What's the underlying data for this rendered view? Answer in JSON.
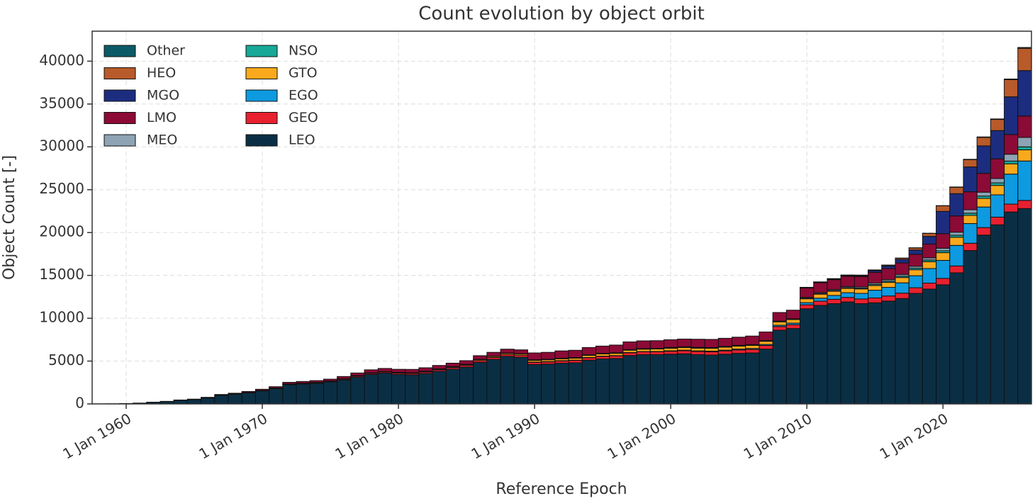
{
  "chart_data": {
    "type": "stacked_bar",
    "title": "Count evolution by object orbit",
    "xlabel": "Reference Epoch",
    "ylabel": "Object Count [-]",
    "x": [
      1958,
      1959,
      1960,
      1961,
      1962,
      1963,
      1964,
      1965,
      1966,
      1967,
      1968,
      1969,
      1970,
      1971,
      1972,
      1973,
      1974,
      1975,
      1976,
      1977,
      1978,
      1979,
      1980,
      1981,
      1982,
      1983,
      1984,
      1985,
      1986,
      1987,
      1988,
      1989,
      1990,
      1991,
      1992,
      1993,
      1994,
      1995,
      1996,
      1997,
      1998,
      1999,
      2000,
      2001,
      2002,
      2003,
      2004,
      2005,
      2006,
      2007,
      2008,
      2009,
      2010,
      2011,
      2012,
      2013,
      2014,
      2015,
      2016,
      2017,
      2018,
      2019,
      2020,
      2021,
      2022,
      2023,
      2024,
      2025,
      2026
    ],
    "xlim": [
      1957.5,
      2026.5
    ],
    "xticks": [
      {
        "value": 1960,
        "label": "1 Jan 1960"
      },
      {
        "value": 1970,
        "label": "1 Jan 1970"
      },
      {
        "value": 1980,
        "label": "1 Jan 1980"
      },
      {
        "value": 1990,
        "label": "1 Jan 1990"
      },
      {
        "value": 2000,
        "label": "1 Jan 2000"
      },
      {
        "value": 2010,
        "label": "1 Jan 2010"
      },
      {
        "value": 2020,
        "label": "1 Jan 2020"
      }
    ],
    "ylim": [
      0,
      43500
    ],
    "yticks": [
      0,
      5000,
      10000,
      15000,
      20000,
      25000,
      30000,
      35000,
      40000
    ],
    "grid": true,
    "legend": "upper left",
    "series": [
      {
        "name": "LEO",
        "color": "#0a2f45",
        "values": [
          10,
          20,
          50,
          100,
          190,
          280,
          420,
          510,
          690,
          1000,
          1130,
          1300,
          1520,
          1790,
          2250,
          2320,
          2400,
          2560,
          2800,
          3150,
          3450,
          3600,
          3450,
          3400,
          3550,
          3800,
          4050,
          4300,
          4850,
          5200,
          5550,
          5450,
          4600,
          4650,
          4750,
          4800,
          5100,
          5250,
          5300,
          5650,
          5750,
          5750,
          5800,
          5850,
          5750,
          5700,
          5800,
          5900,
          5950,
          6400,
          8600,
          8800,
          11100,
          11500,
          11700,
          11900,
          11700,
          11800,
          12000,
          12300,
          12900,
          13400,
          13900,
          15300,
          17900,
          19700,
          20900,
          22400,
          22800
        ]
      },
      {
        "name": "GEO",
        "color": "#e8202f",
        "values": [
          0,
          0,
          0,
          0,
          0,
          0,
          10,
          10,
          20,
          30,
          30,
          40,
          50,
          60,
          70,
          80,
          90,
          100,
          110,
          120,
          130,
          140,
          150,
          160,
          170,
          180,
          190,
          200,
          210,
          220,
          230,
          240,
          250,
          260,
          270,
          280,
          290,
          300,
          310,
          320,
          330,
          340,
          350,
          360,
          370,
          380,
          390,
          400,
          410,
          420,
          430,
          450,
          470,
          490,
          510,
          530,
          550,
          570,
          600,
          630,
          660,
          700,
          750,
          800,
          850,
          880,
          900,
          920,
          950
        ]
      },
      {
        "name": "EGO",
        "color": "#0d9ae0",
        "values": [
          0,
          0,
          0,
          0,
          0,
          0,
          0,
          0,
          0,
          0,
          0,
          0,
          0,
          0,
          0,
          0,
          0,
          0,
          0,
          0,
          0,
          0,
          0,
          0,
          0,
          0,
          0,
          0,
          0,
          0,
          0,
          0,
          30,
          30,
          30,
          30,
          30,
          30,
          30,
          30,
          30,
          30,
          50,
          60,
          70,
          80,
          90,
          100,
          110,
          120,
          150,
          180,
          250,
          350,
          450,
          550,
          650,
          900,
          1000,
          1200,
          1400,
          1700,
          2100,
          2400,
          2300,
          2400,
          2600,
          3500,
          4600
        ]
      },
      {
        "name": "GTO",
        "color": "#f9a91b",
        "values": [
          0,
          0,
          0,
          0,
          0,
          0,
          0,
          0,
          0,
          0,
          0,
          0,
          10,
          10,
          20,
          20,
          30,
          30,
          40,
          40,
          50,
          50,
          60,
          60,
          70,
          80,
          90,
          100,
          110,
          120,
          130,
          140,
          200,
          210,
          220,
          230,
          240,
          250,
          260,
          270,
          280,
          290,
          300,
          310,
          320,
          330,
          340,
          350,
          360,
          370,
          400,
          420,
          450,
          470,
          490,
          500,
          520,
          550,
          580,
          620,
          700,
          800,
          900,
          950,
          950,
          1000,
          1100,
          1200,
          1300
        ]
      },
      {
        "name": "NSO",
        "color": "#18a898",
        "values": [
          0,
          0,
          0,
          0,
          0,
          0,
          0,
          0,
          0,
          0,
          0,
          0,
          0,
          0,
          0,
          0,
          0,
          0,
          0,
          0,
          0,
          0,
          10,
          10,
          10,
          10,
          10,
          10,
          10,
          10,
          10,
          10,
          30,
          30,
          30,
          30,
          30,
          30,
          30,
          30,
          30,
          30,
          30,
          30,
          30,
          30,
          30,
          30,
          30,
          30,
          30,
          30,
          60,
          70,
          80,
          90,
          100,
          120,
          140,
          160,
          180,
          200,
          220,
          240,
          260,
          280,
          300,
          320,
          350
        ]
      },
      {
        "name": "MEO",
        "color": "#8ea3b3",
        "values": [
          0,
          0,
          0,
          0,
          0,
          0,
          0,
          0,
          0,
          0,
          0,
          0,
          0,
          0,
          0,
          0,
          0,
          0,
          0,
          0,
          0,
          0,
          20,
          20,
          20,
          20,
          20,
          20,
          20,
          20,
          20,
          20,
          40,
          40,
          40,
          40,
          40,
          40,
          40,
          40,
          40,
          40,
          60,
          60,
          60,
          60,
          60,
          60,
          60,
          60,
          60,
          60,
          100,
          110,
          120,
          130,
          140,
          160,
          180,
          200,
          220,
          250,
          300,
          350,
          400,
          450,
          500,
          800,
          1100
        ]
      },
      {
        "name": "LMO",
        "color": "#8c0a36",
        "values": [
          0,
          0,
          0,
          0,
          10,
          20,
          30,
          40,
          60,
          70,
          90,
          110,
          130,
          150,
          180,
          200,
          200,
          200,
          250,
          300,
          350,
          350,
          350,
          380,
          400,
          400,
          400,
          420,
          430,
          450,
          450,
          450,
          800,
          800,
          850,
          850,
          850,
          850,
          900,
          900,
          900,
          900,
          900,
          900,
          950,
          950,
          950,
          950,
          1000,
          1000,
          1000,
          1000,
          1100,
          1150,
          1150,
          1200,
          1200,
          1250,
          1300,
          1350,
          1400,
          1600,
          1700,
          1900,
          2100,
          2200,
          2300,
          2300,
          2500
        ]
      },
      {
        "name": "MGO",
        "color": "#1c2d80",
        "values": [
          0,
          0,
          0,
          0,
          0,
          0,
          0,
          0,
          0,
          0,
          0,
          0,
          0,
          0,
          0,
          0,
          0,
          0,
          0,
          0,
          0,
          0,
          0,
          0,
          0,
          0,
          0,
          0,
          0,
          0,
          0,
          0,
          0,
          0,
          0,
          0,
          0,
          0,
          0,
          0,
          0,
          0,
          0,
          0,
          0,
          0,
          0,
          0,
          0,
          0,
          0,
          0,
          50,
          60,
          70,
          80,
          100,
          200,
          300,
          400,
          500,
          900,
          2600,
          2600,
          2900,
          3200,
          3300,
          4400,
          5300
        ]
      },
      {
        "name": "HEO",
        "color": "#b85a2a",
        "values": [
          0,
          0,
          0,
          0,
          0,
          0,
          0,
          0,
          0,
          0,
          0,
          0,
          0,
          0,
          0,
          0,
          0,
          0,
          0,
          0,
          0,
          0,
          0,
          0,
          0,
          0,
          0,
          0,
          0,
          0,
          0,
          0,
          0,
          0,
          0,
          0,
          0,
          0,
          0,
          0,
          0,
          0,
          0,
          0,
          0,
          0,
          0,
          0,
          0,
          0,
          0,
          0,
          20,
          30,
          40,
          50,
          60,
          80,
          100,
          150,
          250,
          350,
          650,
          750,
          850,
          1000,
          1300,
          2000,
          2600
        ]
      },
      {
        "name": "Other",
        "color": "#0b5a68",
        "values": [
          0,
          0,
          0,
          0,
          0,
          0,
          0,
          0,
          0,
          0,
          0,
          0,
          0,
          0,
          0,
          0,
          0,
          0,
          0,
          0,
          0,
          0,
          0,
          0,
          0,
          0,
          0,
          0,
          0,
          0,
          0,
          0,
          0,
          0,
          0,
          0,
          0,
          0,
          0,
          0,
          0,
          0,
          0,
          0,
          0,
          0,
          0,
          0,
          0,
          0,
          0,
          0,
          10,
          10,
          10,
          10,
          10,
          10,
          10,
          10,
          10,
          10,
          20,
          30,
          40,
          50,
          60,
          80,
          100
        ]
      }
    ]
  }
}
